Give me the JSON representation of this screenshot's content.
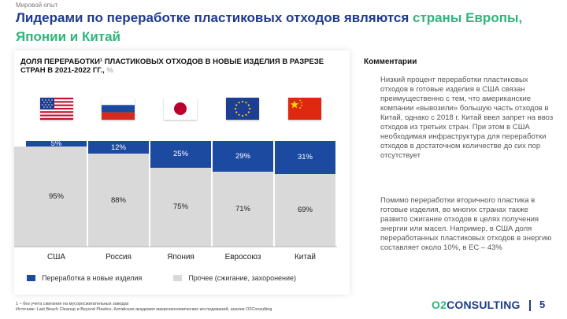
{
  "header": {
    "section_label": "Мировой опыт",
    "title_part1": "Лидерами по переработке пластиковых отходов являются ",
    "title_highlight": "страны Европы, Японии и Китай"
  },
  "chart_data": {
    "type": "bar",
    "stacked": true,
    "title": "ДОЛЯ ПЕРЕРАБОТКИ¹ ПЛАСТИКОВЫХ ОТХОДОВ В НОВЫЕ ИЗДЕЛИЯ В РАЗРЕЗЕ СТРАН В 2021-2022 ГГ.,",
    "title_unit": "%",
    "categories": [
      "США",
      "Россия",
      "Япония",
      "Евросоюз",
      "Китай"
    ],
    "series": [
      {
        "name": "Переработка в новые изделия",
        "values": [
          5,
          12,
          25,
          29,
          31
        ],
        "labels": [
          "5%",
          "12%",
          "25%",
          "29%",
          "31%"
        ],
        "color": "#1c4aa0"
      },
      {
        "name": "Прочее (сжигание, захоронение)",
        "values": [
          95,
          88,
          75,
          71,
          69
        ],
        "labels": [
          "95%",
          "88%",
          "75%",
          "71%",
          "69%"
        ],
        "color": "#d9d9d9"
      }
    ],
    "ylim": [
      0,
      100
    ],
    "legend_position": "bottom"
  },
  "flags": [
    "usa-flag-icon",
    "russia-flag-icon",
    "japan-flag-icon",
    "eu-flag-icon",
    "china-flag-icon"
  ],
  "comments": {
    "title": "Комментарии",
    "paragraph1": "Низкий процент переработки пластиковых отходов в готовые изделия в США связан преимущественно с тем, что американские компании «вывозили» большую часть отходов в Китай, однако с 2018 г. Китай ввел запрет на ввоз отходов из третьих стран. При этом в США необходимая инфраструктура для переработки отходов в достаточном количестве до сих пор отсутствует",
    "paragraph2": "Помимо переработки вторичного пластика в готовые изделия, во многих странах также развито сжигание отходов в целях получения энергии или масел. Например, в США доля переработанных пластиковых отходов в энергию составляет около 10%, в ЕС – 43%"
  },
  "footnote": {
    "line1": "1 – без учета сжигания на мусоросжигательных заводах",
    "line2": "Источник: Last Beach Cleanup и Beyond Plastics, Китайская академия макроэкономических исследований, анализ O2Consulting"
  },
  "logo": {
    "prefix": "O2",
    "name": "CONSULTING"
  },
  "page_number": "5"
}
